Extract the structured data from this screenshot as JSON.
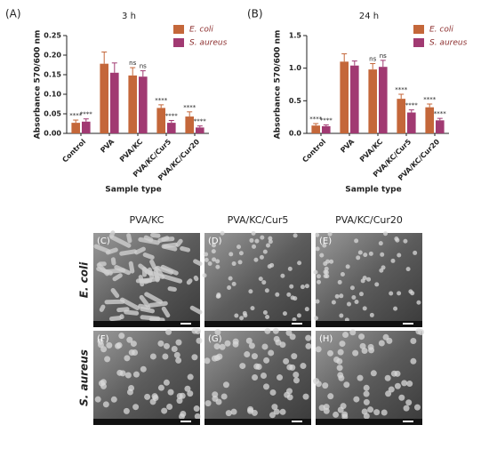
{
  "chart_data": [
    {
      "type": "bar",
      "panel_label": "(A)",
      "title": "3 h",
      "x_label": "Sample type",
      "y_label": "Absorbance 570/600 nm",
      "categories": [
        "Control",
        "PVA",
        "PVA/KC",
        "PVA/KC/Cur5",
        "PVA/KC/Cur20"
      ],
      "series": [
        {
          "name": "E. coli",
          "color": "#c4673a",
          "values": [
            0.027,
            0.178,
            0.148,
            0.065,
            0.043
          ],
          "errors": [
            0.007,
            0.03,
            0.02,
            0.008,
            0.012
          ],
          "significance": [
            "****",
            null,
            "ns",
            "****",
            "****"
          ]
        },
        {
          "name": "S. aureus",
          "color": "#a13a72",
          "values": [
            0.03,
            0.155,
            0.145,
            0.027,
            0.015
          ],
          "errors": [
            0.007,
            0.025,
            0.015,
            0.006,
            0.004
          ],
          "significance": [
            "****",
            null,
            "ns",
            "****",
            "****"
          ]
        }
      ],
      "ylim": [
        0,
        0.25
      ],
      "yticks": [
        {
          "value": 0,
          "label": "0.00"
        },
        {
          "value": 0.05,
          "label": "0.05"
        },
        {
          "value": 0.1,
          "label": "0.10"
        },
        {
          "value": 0.15,
          "label": "0.15"
        },
        {
          "value": 0.2,
          "label": "0.20"
        },
        {
          "value": 0.25,
          "label": "0.25"
        }
      ],
      "grid": false,
      "legend": "top-right"
    },
    {
      "type": "bar",
      "panel_label": "(B)",
      "title": "24 h",
      "x_label": "Sample type",
      "y_label": "Absorbance 570/600 nm",
      "categories": [
        "Control",
        "PVA",
        "PVA/KC",
        "PVA/KC/Cur5",
        "PVA/KC/Cur20"
      ],
      "series": [
        {
          "name": "E. coli",
          "color": "#c4673a",
          "values": [
            0.12,
            1.1,
            0.98,
            0.53,
            0.4
          ],
          "errors": [
            0.03,
            0.12,
            0.09,
            0.07,
            0.05
          ],
          "significance": [
            "****",
            null,
            "ns",
            "****",
            "****"
          ]
        },
        {
          "name": "S. aureus",
          "color": "#a13a72",
          "values": [
            0.11,
            1.04,
            1.02,
            0.32,
            0.2
          ],
          "errors": [
            0.02,
            0.07,
            0.1,
            0.04,
            0.03
          ],
          "significance": [
            "****",
            null,
            "ns",
            "****",
            "****"
          ]
        }
      ],
      "ylim": [
        0,
        1.5
      ],
      "yticks": [
        {
          "value": 0,
          "label": "0.0"
        },
        {
          "value": 0.5,
          "label": "0.5"
        },
        {
          "value": 1,
          "label": "1.0"
        },
        {
          "value": 1.5,
          "label": "1.5"
        }
      ],
      "grid": false,
      "legend": "top-right"
    }
  ],
  "sem_panels": {
    "columns": [
      "PVA/KC",
      "PVA/KC/Cur5",
      "PVA/KC/Cur20"
    ],
    "rows": [
      "E. coli",
      "S. aureus"
    ],
    "panels": [
      [
        "(C)",
        "(D)",
        "(E)"
      ],
      [
        "(F)",
        "(G)",
        "(H)"
      ]
    ]
  }
}
